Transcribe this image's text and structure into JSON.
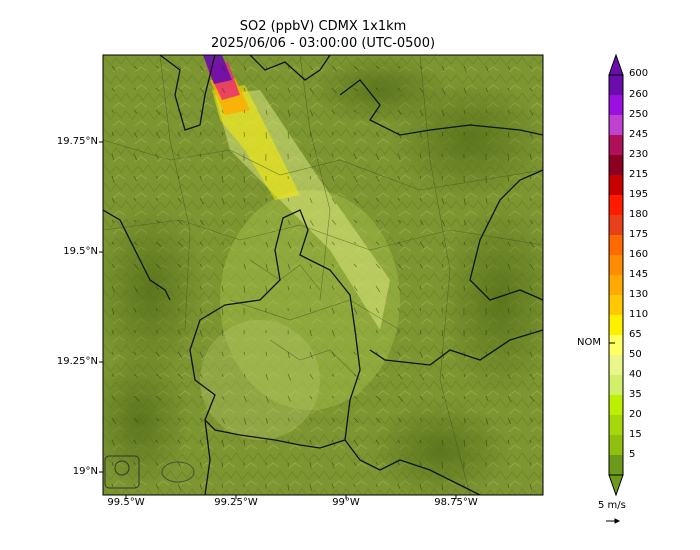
{
  "title": "SO2 (ppbV) CDMX 1x1km",
  "subtitle": "2025/06/06 - 03:00:00 (UTC-0500)",
  "lat_labels": [
    "19.75°N",
    "19.5°N",
    "19.25°N",
    "19°N"
  ],
  "lon_labels": [
    "99.5°W",
    "99.25°W",
    "99°W",
    "98.75°W"
  ],
  "colorbar": {
    "labels": [
      "600",
      "260",
      "250",
      "245",
      "230",
      "215",
      "195",
      "180",
      "175",
      "160",
      "145",
      "130",
      "110",
      "65",
      "50",
      "40",
      "35",
      "20",
      "15",
      "5"
    ],
    "colors": [
      "#6a0dad",
      "#9b10e0",
      "#c040d0",
      "#b0105a",
      "#8b0020",
      "#c80000",
      "#ff1a00",
      "#e8401a",
      "#ff6a00",
      "#ff8c00",
      "#ffaa00",
      "#ffc800",
      "#fff000",
      "#ffff60",
      "#eaf58a",
      "#d2ef6a",
      "#bdf000",
      "#a6d70c",
      "#8fc010",
      "#6d9a1a"
    ],
    "nom_label": "NOM",
    "wind_label": "5 m/s"
  },
  "map": {
    "background_color": "#7d9632",
    "plume_colors": [
      "#6a0dad",
      "#c040d0",
      "#ffaa00",
      "#fff000",
      "#eaf58a"
    ]
  }
}
